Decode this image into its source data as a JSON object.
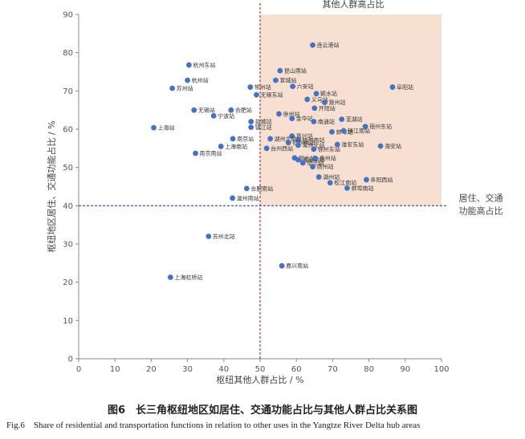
{
  "chart_data": {
    "type": "scatter",
    "xlabel": "枢纽其他人群占比 / %",
    "ylabel": "枢纽地区居住、交通功能占比 / %",
    "xlim": [
      0,
      100
    ],
    "ylim": [
      0,
      90
    ],
    "xticks": [
      "0",
      "10",
      "20",
      "30",
      "40",
      "50",
      "60",
      "70",
      "80",
      "90",
      "100"
    ],
    "yticks": [
      "0",
      "10",
      "20",
      "30",
      "40",
      "50",
      "60",
      "70",
      "80",
      "90"
    ],
    "threshold_x": 50,
    "threshold_y": 40,
    "region_labels": {
      "high_other": "其他人群高占比",
      "high_res_trans": "居住、交通\n功能高占比"
    },
    "grid": false,
    "points": [
      {
        "x": 64.5,
        "y": 82.0,
        "label": "连云港站"
      },
      {
        "x": 55.5,
        "y": 75.3,
        "label": "昆山南站"
      },
      {
        "x": 30.4,
        "y": 76.8,
        "label": "杭州东站"
      },
      {
        "x": 30.0,
        "y": 72.8,
        "label": "杭州站"
      },
      {
        "x": 25.8,
        "y": 70.7,
        "label": "苏州站"
      },
      {
        "x": 54.3,
        "y": 72.8,
        "label": "宣城站"
      },
      {
        "x": 59.0,
        "y": 71.2,
        "label": "六安站"
      },
      {
        "x": 47.3,
        "y": 71.0,
        "label": "常州站"
      },
      {
        "x": 49.0,
        "y": 69.0,
        "label": "无锡东站"
      },
      {
        "x": 86.5,
        "y": 71.0,
        "label": "阜阳站"
      },
      {
        "x": 65.5,
        "y": 69.3,
        "label": "颍水站"
      },
      {
        "x": 63.0,
        "y": 67.8,
        "label": "义乌站"
      },
      {
        "x": 67.8,
        "y": 67.0,
        "label": "滁州站"
      },
      {
        "x": 65.0,
        "y": 65.5,
        "label": "开阳站"
      },
      {
        "x": 31.8,
        "y": 65.0,
        "label": "无锡站"
      },
      {
        "x": 42.0,
        "y": 65.0,
        "label": "合肥站"
      },
      {
        "x": 37.2,
        "y": 63.5,
        "label": "宁波站"
      },
      {
        "x": 55.2,
        "y": 64.0,
        "label": "徐州站"
      },
      {
        "x": 58.8,
        "y": 62.8,
        "label": "金华站"
      },
      {
        "x": 64.8,
        "y": 62.0,
        "label": "南通站"
      },
      {
        "x": 72.5,
        "y": 62.6,
        "label": "芜湖站"
      },
      {
        "x": 47.5,
        "y": 62.0,
        "label": "盐城站"
      },
      {
        "x": 47.5,
        "y": 60.5,
        "label": "镇江站"
      },
      {
        "x": 79.0,
        "y": 60.7,
        "label": "宿州东站"
      },
      {
        "x": 20.7,
        "y": 60.4,
        "label": "上海站"
      },
      {
        "x": 69.8,
        "y": 59.3,
        "label": "蚌埠站"
      },
      {
        "x": 73.0,
        "y": 59.6,
        "label": "镇江南站"
      },
      {
        "x": 58.8,
        "y": 58.2,
        "label": "嘉兴站"
      },
      {
        "x": 52.8,
        "y": 57.5,
        "label": "湖州北站"
      },
      {
        "x": 42.5,
        "y": 57.5,
        "label": "南京站"
      },
      {
        "x": 60.5,
        "y": 57.2,
        "label": "杭州南站"
      },
      {
        "x": 57.8,
        "y": 56.5,
        "label": "杭州西站"
      },
      {
        "x": 60.5,
        "y": 55.8,
        "label": "常州北站"
      },
      {
        "x": 71.3,
        "y": 56.0,
        "label": "淮安东站"
      },
      {
        "x": 39.2,
        "y": 55.5,
        "label": "上海南站"
      },
      {
        "x": 83.2,
        "y": 55.6,
        "label": "海安站"
      },
      {
        "x": 51.8,
        "y": 55.0,
        "label": "台州西站"
      },
      {
        "x": 64.8,
        "y": 54.8,
        "label": "徐州东站"
      },
      {
        "x": 32.2,
        "y": 53.7,
        "label": "南京南站"
      },
      {
        "x": 59.5,
        "y": 52.5,
        "label": "丽水站"
      },
      {
        "x": 60.5,
        "y": 52.0,
        "label": "温州南站"
      },
      {
        "x": 65.2,
        "y": 52.4,
        "label": "泰州站"
      },
      {
        "x": 61.8,
        "y": 51.2,
        "label": "宿迁站"
      },
      {
        "x": 64.5,
        "y": 50.2,
        "label": "扬州站"
      },
      {
        "x": 66.2,
        "y": 47.5,
        "label": "湖州站"
      },
      {
        "x": 79.3,
        "y": 46.8,
        "label": "阜阳西站"
      },
      {
        "x": 69.3,
        "y": 46.0,
        "label": "松江南站"
      },
      {
        "x": 74.0,
        "y": 44.6,
        "label": "蚌埠南站"
      },
      {
        "x": 46.3,
        "y": 44.5,
        "label": "合肥南站"
      },
      {
        "x": 42.4,
        "y": 42.0,
        "label": "温州南站"
      },
      {
        "x": 35.8,
        "y": 32.0,
        "label": "苏州北站"
      },
      {
        "x": 56.0,
        "y": 24.3,
        "label": "嘉兴南站"
      },
      {
        "x": 25.3,
        "y": 21.3,
        "label": "上海虹桥站"
      }
    ]
  },
  "caption": {
    "cn": "图6　长三角枢纽地区如居住、交通功能占比与其他人群占比关系图",
    "en": "Fig.6　Share of residential and transportation functions in relation to other uses in the Yangtze River Delta hub areas"
  },
  "colors": {
    "point": "#4472c4",
    "quadrant": "#f7e0d2",
    "threshold": "#a83c3c",
    "threshold_h": "#2a4a9c"
  }
}
